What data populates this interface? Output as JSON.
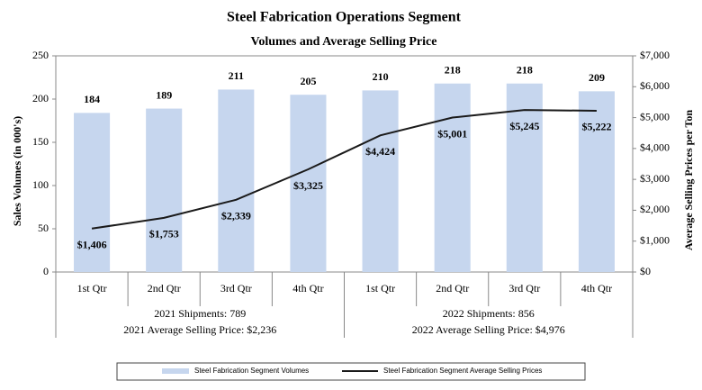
{
  "chart_data": {
    "type": "bar",
    "title": "Steel Fabrication Operations Segment",
    "subtitle": "Volumes and Average Selling Price",
    "y_label": "Sales Volumes (in 000's)",
    "y2_label": "Average Selling Prices per Ton",
    "categories": [
      "1st Qtr",
      "2nd Qtr",
      "3rd Qtr",
      "4th Qtr",
      "1st Qtr",
      "2nd Qtr",
      "3rd Qtr",
      "4th Qtr"
    ],
    "series": [
      {
        "name": "Steel Fabrication Segment Volumes",
        "type": "bar",
        "axis": "y",
        "color": "#c6d6ee",
        "values": [
          184,
          189,
          211,
          205,
          210,
          218,
          218,
          209
        ]
      },
      {
        "name": "Steel Fabrication Segment Average Selling Prices",
        "type": "line",
        "axis": "y2",
        "color": "#1a1a1a",
        "values": [
          1406,
          1753,
          2339,
          3325,
          4424,
          5001,
          5245,
          5222
        ],
        "value_labels": [
          "$1,406",
          "$1,753",
          "$2,339",
          "$3,325",
          "$4,424",
          "$5,001",
          "$5,245",
          "$5,222"
        ]
      }
    ],
    "groups": [
      {
        "shipments": "2021 Shipments: 789",
        "price": "2021 Average Selling Price: $2,236"
      },
      {
        "shipments": "2022 Shipments: 856",
        "price": "2022 Average Selling Price: $4,976"
      }
    ],
    "ylim": [
      0,
      250
    ],
    "yticks": [
      0,
      50,
      100,
      150,
      200,
      250
    ],
    "y2lim": [
      0,
      7000
    ],
    "y2ticks": [
      {
        "value": 0,
        "label": "$0"
      },
      {
        "value": 1000,
        "label": "$1,000"
      },
      {
        "value": 2000,
        "label": "$2,000"
      },
      {
        "value": 3000,
        "label": "$3,000"
      },
      {
        "value": 4000,
        "label": "$4,000"
      },
      {
        "value": 5000,
        "label": "$5,000"
      },
      {
        "value": 6000,
        "label": "$6,000"
      },
      {
        "value": 7000,
        "label": "$7,000"
      }
    ],
    "grid": false
  }
}
